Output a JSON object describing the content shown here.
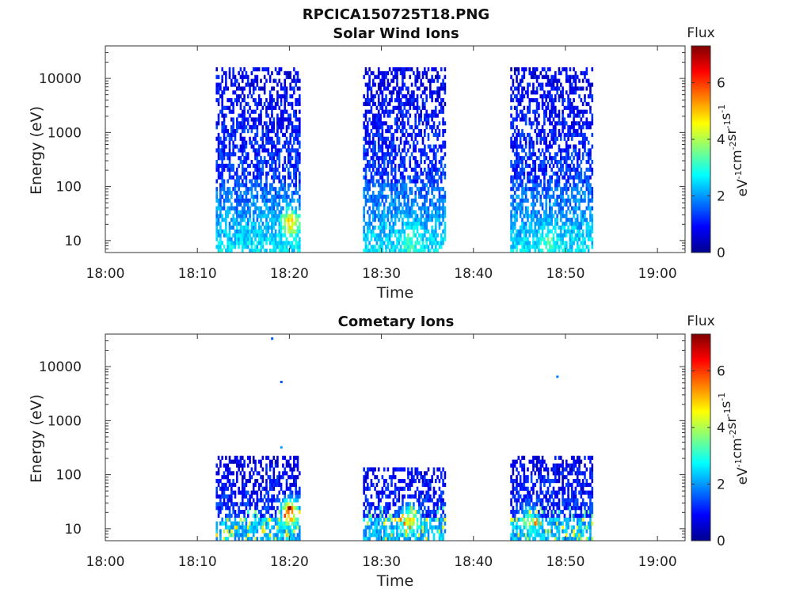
{
  "figure": {
    "title": "RPCICA150725T18.PNG"
  },
  "chart_data": [
    {
      "type": "heatmap",
      "title": "Solar Wind Ions",
      "xlabel": "Time",
      "ylabel": "Energy (eV)",
      "x_ticks": [
        "18:00",
        "18:10",
        "18:20",
        "18:30",
        "18:40",
        "18:50",
        "19:00"
      ],
      "x_range_minutes": [
        0,
        63
      ],
      "y_scale": "log",
      "y_ticks": [
        "10",
        "100",
        "1000",
        "10000"
      ],
      "y_range": [
        6,
        40000
      ],
      "colorbar": {
        "label": "Flux",
        "unit": "eV-1cm-2sr-1s-1",
        "ticks": [
          "0",
          "2",
          "4",
          "6"
        ],
        "range": [
          0,
          7.3
        ],
        "colormap": "jet"
      },
      "bursts": [
        {
          "start": "18:12",
          "end": "18:21",
          "energy_min": 6,
          "energy_max": 15000,
          "peak_flux": 5.2,
          "peak_time": "18:20",
          "peak_energy": 20
        },
        {
          "start": "18:28",
          "end": "18:37",
          "energy_min": 6,
          "energy_max": 15000,
          "peak_flux": 3.2,
          "peak_time": "18:33",
          "peak_energy": 10
        },
        {
          "start": "18:44",
          "end": "18:53",
          "energy_min": 6,
          "energy_max": 15000,
          "peak_flux": 3.2,
          "peak_time": "18:48",
          "peak_energy": 10
        }
      ]
    },
    {
      "type": "heatmap",
      "title": "Cometary Ions",
      "xlabel": "Time",
      "ylabel": "Energy (eV)",
      "x_ticks": [
        "18:00",
        "18:10",
        "18:20",
        "18:30",
        "18:40",
        "18:50",
        "19:00"
      ],
      "x_range_minutes": [
        0,
        63
      ],
      "y_scale": "log",
      "y_ticks": [
        "10",
        "100",
        "1000",
        "10000"
      ],
      "y_range": [
        6,
        40000
      ],
      "colorbar": {
        "label": "Flux",
        "unit": "eV-1cm-2sr-1s-1",
        "ticks": [
          "0",
          "2",
          "4",
          "6"
        ],
        "range": [
          0,
          7.3
        ],
        "colormap": "jet"
      },
      "bursts": [
        {
          "start": "18:12",
          "end": "18:21",
          "energy_min": 6,
          "energy_max": 200,
          "peak_flux": 6.8,
          "peak_time": "18:20",
          "peak_energy": 20
        },
        {
          "start": "18:28",
          "end": "18:37",
          "energy_min": 6,
          "energy_max": 130,
          "peak_flux": 5.0,
          "peak_time": "18:33",
          "peak_energy": 15
        },
        {
          "start": "18:44",
          "end": "18:53",
          "energy_min": 6,
          "energy_max": 200,
          "peak_flux": 4.2,
          "peak_time": "18:46",
          "peak_energy": 15
        }
      ],
      "isolated_points": [
        {
          "time": "18:18",
          "energy": 33000,
          "flux": 1.5
        },
        {
          "time": "18:19",
          "energy": 5200,
          "flux": 1.5
        },
        {
          "time": "18:19",
          "energy": 320,
          "flux": 2.0
        },
        {
          "time": "18:49",
          "energy": 6500,
          "flux": 1.8
        }
      ]
    }
  ]
}
